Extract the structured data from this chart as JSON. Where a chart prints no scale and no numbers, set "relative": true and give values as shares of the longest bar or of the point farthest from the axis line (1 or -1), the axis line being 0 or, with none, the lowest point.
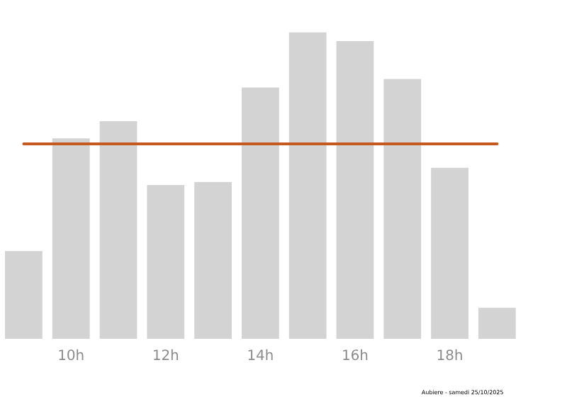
{
  "chart_data": {
    "type": "bar",
    "relative": true,
    "categories": [
      null,
      "10h",
      null,
      "12h",
      null,
      "14h",
      null,
      "16h",
      null,
      "18h",
      null
    ],
    "values": [
      0.286,
      0.654,
      0.71,
      0.502,
      0.512,
      0.82,
      1,
      0.972,
      0.848,
      0.558,
      0.101
    ],
    "color": "#d3d3d3",
    "ref_lines": [
      {
        "axis": "y",
        "value": 0.636,
        "color": "#c65a1e"
      }
    ],
    "annotations": [
      "Aubiere - samedi 25/10/2025"
    ]
  }
}
